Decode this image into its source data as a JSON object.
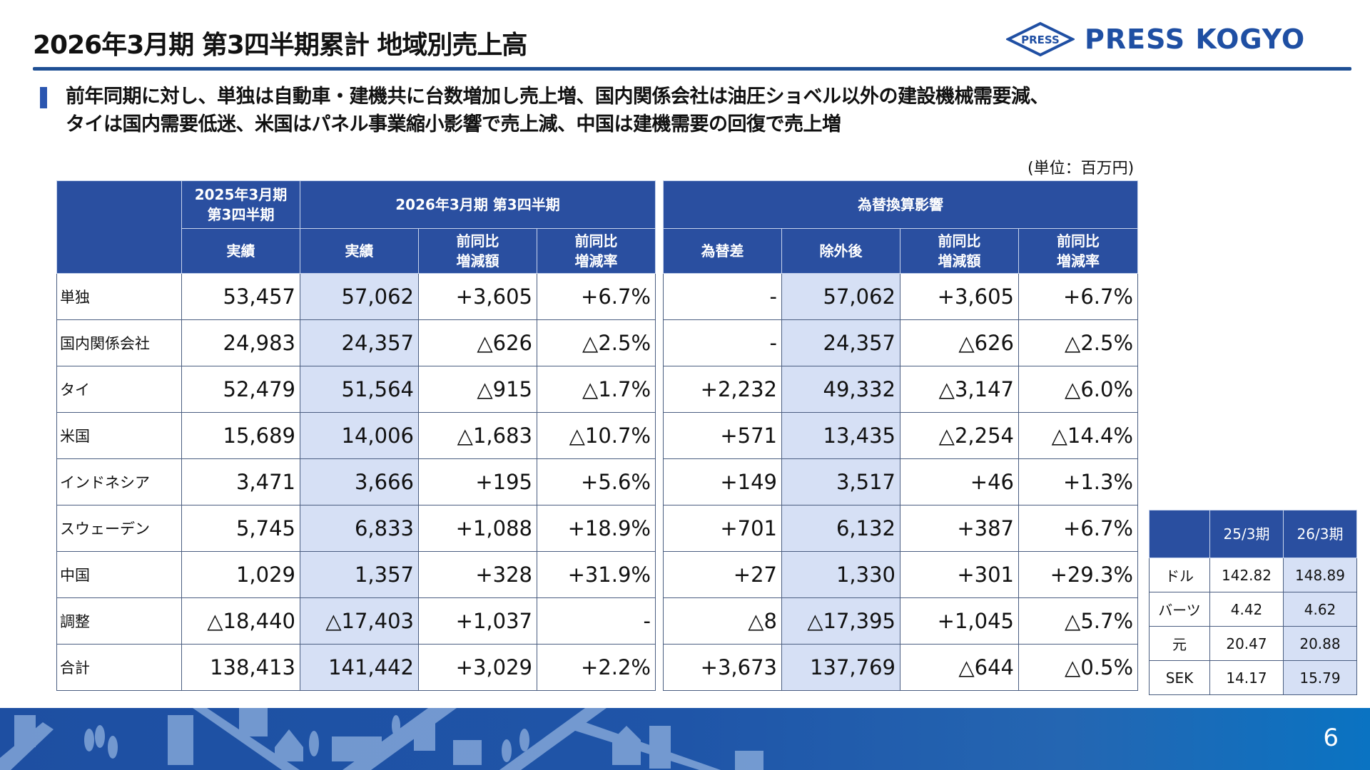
{
  "header": {
    "title": "2026年3月期 第3四半期累計 地域別売上高",
    "logo_text": "PRESS KOGYO",
    "logo_mark_text": "PRESS"
  },
  "lead": {
    "line1": "前年同期に対し、単独は自動車・建機共に台数増加し売上増、国内関係会社は油圧ショベル以外の建設機械需要減、",
    "line2": "タイは国内需要低迷、米国はパネル事業縮小影響で売上減、中国は建機需要の回復で売上増"
  },
  "unit_label": "(単位：百万円)",
  "left_table": {
    "group_prev": "2025年3月期\n第3四半期",
    "group_prev_l1": "2025年3月期",
    "group_prev_l2": "第3四半期",
    "group_curr": "2026年3月期 第3四半期",
    "col_prev_actual": "実績",
    "col_curr_actual": "実績",
    "col_diff_l1": "前同比",
    "col_diff_l2": "増減額",
    "col_rate_l1": "前同比",
    "col_rate_l2": "増減率"
  },
  "right_table": {
    "group": "為替換算影響",
    "col_fx": "為替差",
    "col_excl": "除外後",
    "col_diff_l1": "前同比",
    "col_diff_l2": "増減額",
    "col_rate_l1": "前同比",
    "col_rate_l2": "増減率"
  },
  "rows": [
    {
      "label": "単独",
      "prev": "53,457",
      "curr": "57,062",
      "diff": "+3,605",
      "rate": "+6.7%",
      "fx": "-",
      "excl": "57,062",
      "ediff": "+3,605",
      "erate": "+6.7%"
    },
    {
      "label": "国内関係会社",
      "prev": "24,983",
      "curr": "24,357",
      "diff": "△626",
      "rate": "△2.5%",
      "fx": "-",
      "excl": "24,357",
      "ediff": "△626",
      "erate": "△2.5%"
    },
    {
      "label": "タイ",
      "prev": "52,479",
      "curr": "51,564",
      "diff": "△915",
      "rate": "△1.7%",
      "fx": "+2,232",
      "excl": "49,332",
      "ediff": "△3,147",
      "erate": "△6.0%"
    },
    {
      "label": "米国",
      "prev": "15,689",
      "curr": "14,006",
      "diff": "△1,683",
      "rate": "△10.7%",
      "fx": "+571",
      "excl": "13,435",
      "ediff": "△2,254",
      "erate": "△14.4%"
    },
    {
      "label": "インドネシア",
      "prev": "3,471",
      "curr": "3,666",
      "diff": "+195",
      "rate": "+5.6%",
      "fx": "+149",
      "excl": "3,517",
      "ediff": "+46",
      "erate": "+1.3%"
    },
    {
      "label": "スウェーデン",
      "prev": "5,745",
      "curr": "6,833",
      "diff": "+1,088",
      "rate": "+18.9%",
      "fx": "+701",
      "excl": "6,132",
      "ediff": "+387",
      "erate": "+6.7%"
    },
    {
      "label": "中国",
      "prev": "1,029",
      "curr": "1,357",
      "diff": "+328",
      "rate": "+31.9%",
      "fx": "+27",
      "excl": "1,330",
      "ediff": "+301",
      "erate": "+29.3%"
    },
    {
      "label": "調整",
      "prev": "△18,440",
      "curr": "△17,403",
      "diff": "+1,037",
      "rate": "-",
      "fx": "△8",
      "excl": "△17,395",
      "ediff": "+1,045",
      "erate": "△5.7%"
    },
    {
      "label": "合計",
      "prev": "138,413",
      "curr": "141,442",
      "diff": "+3,029",
      "rate": "+2.2%",
      "fx": "+3,673",
      "excl": "137,769",
      "ediff": "△644",
      "erate": "△0.5%"
    }
  ],
  "fx_table": {
    "col_prev": "25/3期",
    "col_curr": "26/3期",
    "rows": [
      {
        "currency": "ドル",
        "prev": "142.82",
        "curr": "148.89"
      },
      {
        "currency": "バーツ",
        "prev": "4.42",
        "curr": "4.62"
      },
      {
        "currency": "元",
        "prev": "20.47",
        "curr": "20.88"
      },
      {
        "currency": "SEK",
        "prev": "14.17",
        "curr": "15.79"
      }
    ]
  },
  "footer": {
    "page_number": "6"
  },
  "colors": {
    "header_blue": "#2a4fa0",
    "highlight": "#d6e0f5",
    "brand_blue": "#1f4fa3",
    "rule": "#1f4f94"
  }
}
